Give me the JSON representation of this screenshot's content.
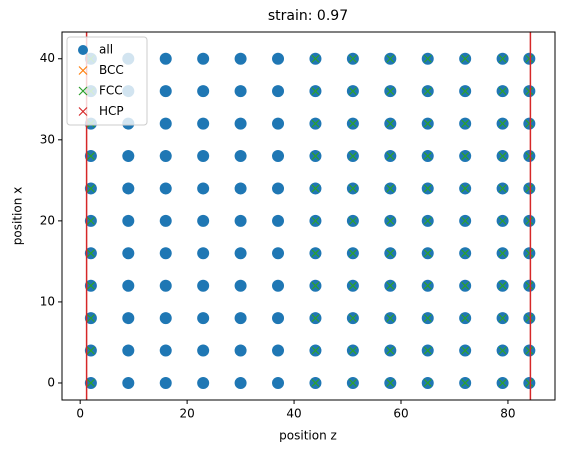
{
  "chart_data": {
    "type": "scatter",
    "title": "strain: 0.97",
    "xlabel": "position z",
    "ylabel": "position x",
    "xlim": [
      -3.4,
      88.8
    ],
    "ylim": [
      -2.1,
      43.3
    ],
    "xticks": [
      0,
      20,
      40,
      60,
      80
    ],
    "yticks": [
      0,
      10,
      20,
      30,
      40
    ],
    "legend": "upper left",
    "vlines": {
      "color": "#d62728",
      "x": [
        1.2,
        84.2
      ]
    },
    "series": [
      {
        "name": "all",
        "color": "#1f77b4",
        "marker": "o",
        "x": [
          2,
          9,
          16,
          23,
          30,
          37,
          44,
          51,
          58,
          65,
          72,
          79,
          84,
          2,
          9,
          16,
          23,
          30,
          37,
          44,
          51,
          58,
          65,
          72,
          79,
          84,
          2,
          9,
          16,
          23,
          30,
          37,
          44,
          51,
          58,
          65,
          72,
          79,
          84,
          2,
          9,
          16,
          23,
          30,
          37,
          44,
          51,
          58,
          65,
          72,
          79,
          84,
          2,
          9,
          16,
          23,
          30,
          37,
          44,
          51,
          58,
          65,
          72,
          79,
          84,
          2,
          9,
          16,
          23,
          30,
          37,
          44,
          51,
          58,
          65,
          72,
          79,
          84,
          2,
          9,
          16,
          23,
          30,
          37,
          44,
          51,
          58,
          65,
          72,
          79,
          84,
          2,
          9,
          16,
          23,
          30,
          37,
          44,
          51,
          58,
          65,
          72,
          79,
          84,
          2,
          9,
          16,
          23,
          30,
          37,
          44,
          51,
          58,
          65,
          72,
          79,
          84,
          2,
          9,
          16,
          23,
          30,
          37,
          44,
          51,
          58,
          65,
          72,
          79,
          84,
          2,
          9,
          16,
          23,
          30,
          37,
          44,
          51,
          58,
          65,
          72,
          79,
          84
        ],
        "values": [
          0,
          0,
          0,
          0,
          0,
          0,
          0,
          0,
          0,
          0,
          0,
          0,
          0,
          4,
          4,
          4,
          4,
          4,
          4,
          4,
          4,
          4,
          4,
          4,
          4,
          4,
          8,
          8,
          8,
          8,
          8,
          8,
          8,
          8,
          8,
          8,
          8,
          8,
          8,
          12,
          12,
          12,
          12,
          12,
          12,
          12,
          12,
          12,
          12,
          12,
          12,
          12,
          16,
          16,
          16,
          16,
          16,
          16,
          16,
          16,
          16,
          16,
          16,
          16,
          16,
          20,
          20,
          20,
          20,
          20,
          20,
          20,
          20,
          20,
          20,
          20,
          20,
          20,
          24,
          24,
          24,
          24,
          24,
          24,
          24,
          24,
          24,
          24,
          24,
          24,
          24,
          28,
          28,
          28,
          28,
          28,
          28,
          28,
          28,
          28,
          28,
          28,
          28,
          28,
          32,
          32,
          32,
          32,
          32,
          32,
          32,
          32,
          32,
          32,
          32,
          32,
          32,
          36,
          36,
          36,
          36,
          36,
          36,
          36,
          36,
          36,
          36,
          36,
          36,
          36,
          40,
          40,
          40,
          40,
          40,
          40,
          40,
          40,
          40,
          40,
          40,
          40,
          40
        ]
      },
      {
        "name": "BCC",
        "color": "#ff7f0e",
        "marker": "x",
        "x": [],
        "values": []
      },
      {
        "name": "FCC",
        "color": "#2ca02c",
        "marker": "x",
        "x": [
          2,
          44,
          51,
          58,
          65,
          72,
          79,
          84,
          2,
          44,
          51,
          58,
          65,
          72,
          79,
          84,
          2,
          44,
          51,
          58,
          65,
          72,
          79,
          84,
          2,
          44,
          51,
          58,
          65,
          72,
          79,
          84,
          2,
          44,
          51,
          58,
          65,
          72,
          79,
          84,
          2,
          44,
          51,
          58,
          65,
          72,
          79,
          84,
          2,
          44,
          51,
          58,
          65,
          72,
          79,
          84,
          2,
          44,
          51,
          58,
          65,
          72,
          79,
          84,
          2,
          44,
          51,
          58,
          65,
          72,
          79,
          84,
          2,
          44,
          51,
          58,
          65,
          72,
          79,
          84,
          2,
          44,
          51,
          58,
          65,
          72,
          79,
          84
        ],
        "values": [
          0,
          0,
          0,
          0,
          0,
          0,
          0,
          0,
          4,
          4,
          4,
          4,
          4,
          4,
          4,
          4,
          8,
          8,
          8,
          8,
          8,
          8,
          8,
          8,
          12,
          12,
          12,
          12,
          12,
          12,
          12,
          12,
          16,
          16,
          16,
          16,
          16,
          16,
          16,
          16,
          20,
          20,
          20,
          20,
          20,
          20,
          20,
          20,
          24,
          24,
          24,
          24,
          24,
          24,
          24,
          24,
          28,
          28,
          28,
          28,
          28,
          28,
          28,
          28,
          32,
          32,
          32,
          32,
          32,
          32,
          32,
          32,
          36,
          36,
          36,
          36,
          36,
          36,
          36,
          36,
          40,
          40,
          40,
          40,
          40,
          40,
          40,
          40
        ]
      },
      {
        "name": "HCP",
        "color": "#d62728",
        "marker": "x",
        "x": [],
        "values": []
      }
    ]
  }
}
